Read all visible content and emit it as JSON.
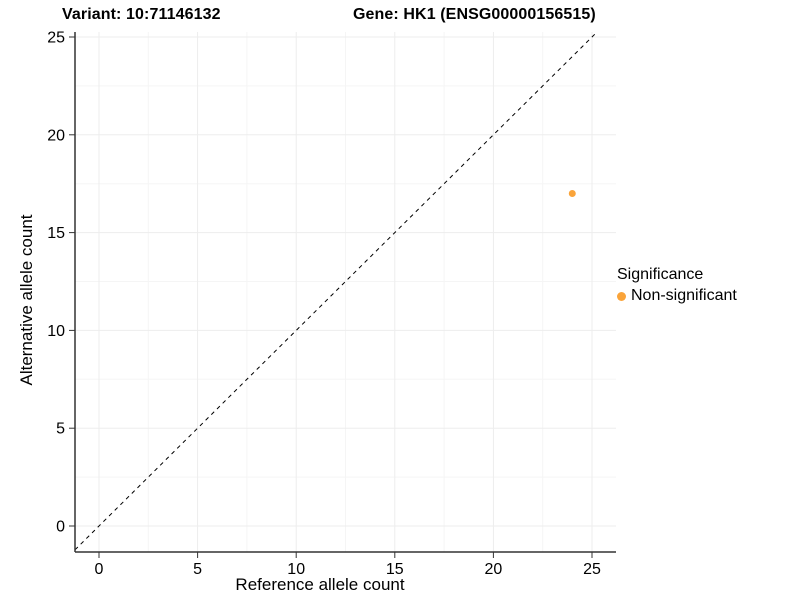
{
  "titles": {
    "variant": "Variant: 10:71146132",
    "gene": "Gene: HK1 (ENSG00000156515)"
  },
  "chart_data": {
    "type": "scatter",
    "xlabel": "Reference allele count",
    "ylabel": "Alternative allele count",
    "xlim": [
      0,
      25
    ],
    "ylim": [
      0,
      25
    ],
    "xticks": [
      0,
      5,
      10,
      15,
      20,
      25
    ],
    "yticks": [
      0,
      5,
      10,
      15,
      20,
      25
    ],
    "grid": {
      "major": true,
      "minor": true
    },
    "points": [
      {
        "x": 24,
        "y": 17,
        "series": "Non-significant"
      }
    ],
    "reference_line": {
      "type": "identity y=x",
      "style": "dashed"
    },
    "legend": {
      "title": "Significance",
      "position": "right",
      "entries": [
        {
          "label": "Non-significant",
          "color": "#FAA43A"
        }
      ]
    }
  },
  "colors": {
    "point": "#FAA43A",
    "axis_line": "#333333",
    "tick_mark": "#333333",
    "grid_major": "#ededed",
    "grid_minor": "#f5f5f5",
    "reference_line": "#000000",
    "text": "#000000",
    "background": "#ffffff"
  }
}
